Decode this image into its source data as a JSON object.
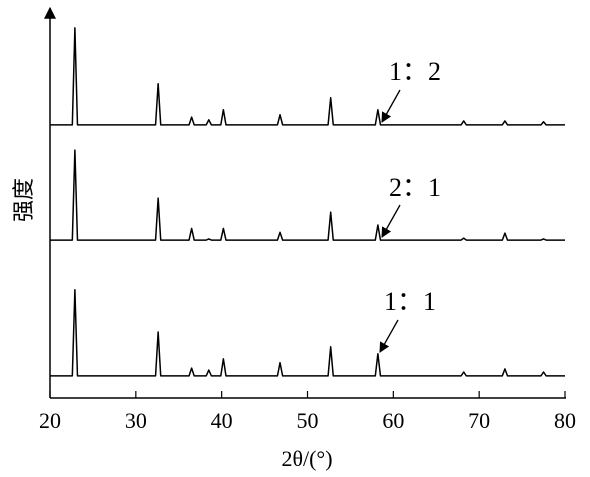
{
  "chart_data": {
    "type": "line",
    "x_label": "2θ/(°)",
    "y_label": "强度",
    "xlim": [
      20,
      80
    ],
    "xticks": [
      20,
      30,
      40,
      50,
      60,
      70,
      80
    ],
    "ylim": [
      0,
      100
    ],
    "x": [
      20,
      22.6,
      22.9,
      23.2,
      32.3,
      32.6,
      32.9,
      36.2,
      36.5,
      36.8,
      38.2,
      38.5,
      38.8,
      39.9,
      40.2,
      40.5,
      46.5,
      46.8,
      47.1,
      52.4,
      52.7,
      53.0,
      57.9,
      58.2,
      58.5,
      67.9,
      68.2,
      68.5,
      72.7,
      73.0,
      73.3,
      77.2,
      77.5,
      77.8,
      80
    ],
    "series": [
      {
        "name": "1：2",
        "color": "#000000",
        "values": [
          70.4,
          70.4,
          95.4,
          70.4,
          70.4,
          81.0,
          70.4,
          70.4,
          72.4,
          70.4,
          70.4,
          71.7,
          70.4,
          70.4,
          74.3,
          70.4,
          70.4,
          73.0,
          70.4,
          70.4,
          77.4,
          70.4,
          70.4,
          74.3,
          70.4,
          70.4,
          71.4,
          70.4,
          70.4,
          71.4,
          70.4,
          70.4,
          71.2,
          70.4,
          70.4
        ]
      },
      {
        "name": "2：1",
        "color": "#000000",
        "values": [
          40.7,
          40.7,
          63.9,
          40.7,
          40.7,
          51.5,
          40.7,
          40.7,
          43.7,
          40.7,
          40.7,
          41.0,
          40.7,
          40.7,
          43.7,
          40.7,
          40.7,
          42.7,
          40.7,
          40.7,
          47.9,
          40.7,
          40.7,
          44.6,
          40.7,
          40.7,
          41.2,
          40.7,
          40.7,
          42.5,
          40.7,
          40.7,
          41.0,
          40.7,
          40.7
        ]
      },
      {
        "name": "1：1",
        "color": "#000000",
        "values": [
          5.7,
          5.7,
          27.9,
          5.7,
          5.7,
          17.0,
          5.7,
          5.7,
          7.7,
          5.7,
          5.7,
          7.2,
          5.7,
          5.7,
          10.1,
          5.7,
          5.7,
          9.1,
          5.7,
          5.7,
          13.2,
          5.7,
          5.7,
          11.4,
          5.7,
          5.7,
          6.7,
          5.7,
          5.7,
          7.5,
          5.7,
          5.7,
          6.7,
          5.7,
          5.7
        ]
      }
    ]
  }
}
